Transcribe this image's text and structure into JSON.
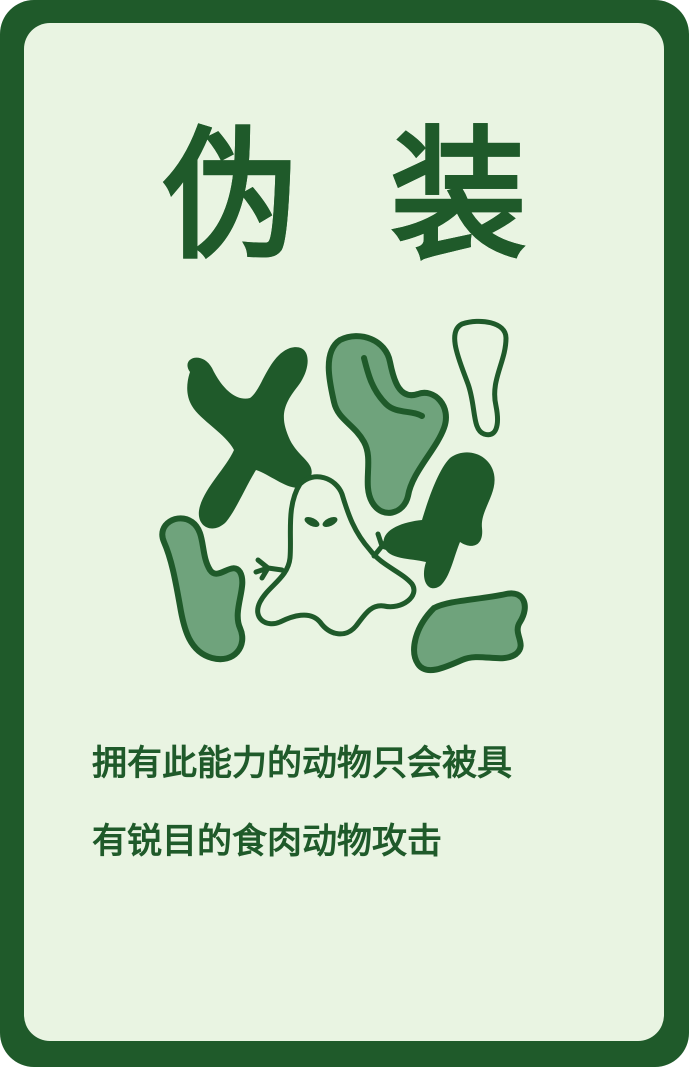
{
  "card": {
    "title_chars": [
      "伪",
      "装"
    ],
    "description_lines": [
      "拥有此能力的动物只会被具",
      "有锐目的食肉动物攻击"
    ],
    "illustration_icon": "camouflage-ghost-icon"
  },
  "colors": {
    "frame": "#1f5a2a",
    "background": "#e9f4e2",
    "dark_green": "#1f5a2a",
    "light_green": "#6fa37c"
  }
}
